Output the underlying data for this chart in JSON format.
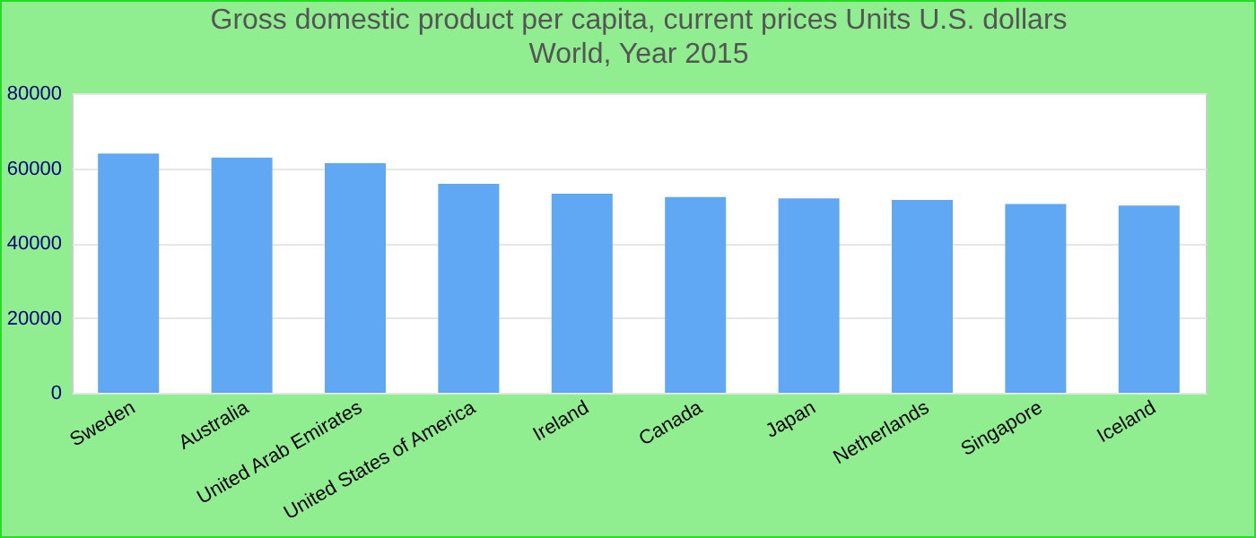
{
  "chart_data": {
    "type": "bar",
    "title": "Gross domestic product per capita, current prices Units U.S. dollars",
    "subtitle": "World, Year 2015",
    "categories": [
      "Sweden",
      "Australia",
      "United Arab Emirates",
      "United States of America",
      "Ireland",
      "Canada",
      "Japan",
      "Netherlands",
      "Singapore",
      "Iceland"
    ],
    "values": [
      63900,
      62800,
      61300,
      55800,
      53200,
      52300,
      51900,
      51500,
      50400,
      50000
    ],
    "color": "#60a8f4",
    "ylim": [
      0,
      80000
    ],
    "yticks": [
      0,
      20000,
      40000,
      60000,
      80000
    ],
    "grid": "y"
  }
}
